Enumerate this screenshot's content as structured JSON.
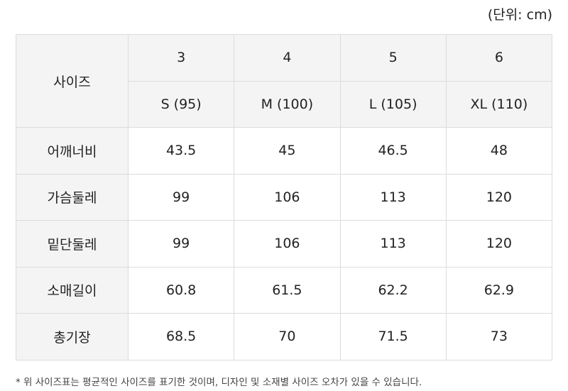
{
  "unit_label": "(단위: cm)",
  "table": {
    "header_label": "사이즈",
    "sizes": [
      "3",
      "4",
      "5",
      "6"
    ],
    "size_labels": [
      "S (95)",
      "M (100)",
      "L (105)",
      "XL (110)"
    ],
    "rows": [
      {
        "label": "어깨너비",
        "values": [
          "43.5",
          "45",
          "46.5",
          "48"
        ]
      },
      {
        "label": "가슴둘레",
        "values": [
          "99",
          "106",
          "113",
          "120"
        ]
      },
      {
        "label": "밑단둘레",
        "values": [
          "99",
          "106",
          "113",
          "120"
        ]
      },
      {
        "label": "소매길이",
        "values": [
          "60.8",
          "61.5",
          "62.2",
          "62.9"
        ]
      },
      {
        "label": "총기장",
        "values": [
          "68.5",
          "70",
          "71.5",
          "73"
        ]
      }
    ]
  },
  "footnote": "* 위 사이즈표는 평균적인 사이즈를 표기한 것이며, 디자인 및 소재별 사이즈 오차가 있을 수 있습니다."
}
